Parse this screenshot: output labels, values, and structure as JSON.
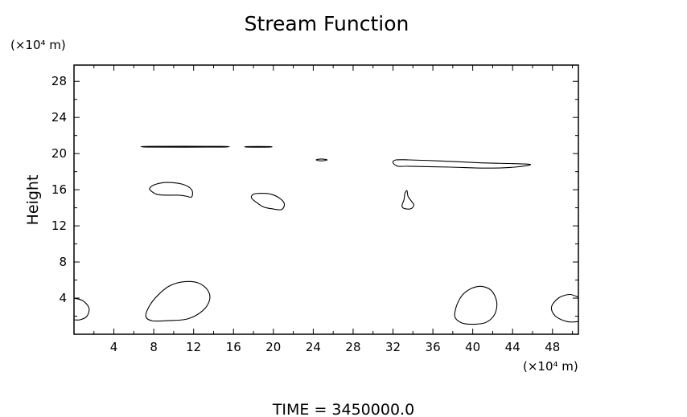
{
  "chart_data": {
    "type": "contour",
    "title": "Stream Function",
    "ylabel": "Height",
    "xunit_label": "(×10⁴ m)",
    "yunit_label": "(×10⁴ m)",
    "footer": "TIME  =  3450000.0",
    "xlim": [
      0,
      50.6
    ],
    "ylim": [
      0,
      29.8
    ],
    "xticks": [
      4,
      8,
      12,
      16,
      20,
      24,
      28,
      32,
      36,
      40,
      44,
      48
    ],
    "yticks": [
      4,
      8,
      12,
      16,
      20,
      24,
      28
    ],
    "grid": false,
    "line_color": "#000000",
    "contours": [
      {
        "name": "lower-left-edge",
        "closed": false,
        "points": [
          [
            0,
            4.0
          ],
          [
            0.9,
            3.7
          ],
          [
            1.5,
            2.9
          ],
          [
            1.3,
            2.0
          ],
          [
            0.6,
            1.6
          ],
          [
            0,
            1.6
          ]
        ]
      },
      {
        "name": "lower-left-cell",
        "closed": true,
        "points": [
          [
            7.2,
            2.0
          ],
          [
            7.6,
            3.2
          ],
          [
            8.4,
            4.3
          ],
          [
            9.5,
            5.3
          ],
          [
            10.9,
            5.8
          ],
          [
            12.4,
            5.7
          ],
          [
            13.4,
            4.9
          ],
          [
            13.6,
            3.8
          ],
          [
            12.9,
            2.6
          ],
          [
            11.4,
            1.7
          ],
          [
            9.3,
            1.5
          ],
          [
            7.8,
            1.5
          ]
        ]
      },
      {
        "name": "lower-right-cell",
        "closed": true,
        "points": [
          [
            38.2,
            2.0
          ],
          [
            38.5,
            3.5
          ],
          [
            39.3,
            4.7
          ],
          [
            40.6,
            5.3
          ],
          [
            41.8,
            4.9
          ],
          [
            42.4,
            3.6
          ],
          [
            42.2,
            2.2
          ],
          [
            41.3,
            1.3
          ],
          [
            39.9,
            1.1
          ],
          [
            38.8,
            1.3
          ]
        ]
      },
      {
        "name": "lower-right-edge",
        "closed": false,
        "points": [
          [
            50.6,
            4.1
          ],
          [
            49.7,
            4.4
          ],
          [
            48.6,
            4.0
          ],
          [
            47.9,
            3.0
          ],
          [
            48.3,
            2.0
          ],
          [
            49.5,
            1.4
          ],
          [
            50.6,
            1.4
          ]
        ]
      },
      {
        "name": "mid-left-cell",
        "closed": true,
        "points": [
          [
            7.6,
            16.2
          ],
          [
            8.2,
            16.6
          ],
          [
            9.3,
            16.8
          ],
          [
            10.9,
            16.6
          ],
          [
            11.8,
            16.0
          ],
          [
            11.8,
            15.2
          ],
          [
            11.2,
            15.3
          ],
          [
            10.5,
            15.4
          ],
          [
            9.2,
            15.4
          ],
          [
            8.3,
            15.5
          ],
          [
            7.7,
            15.9
          ]
        ]
      },
      {
        "name": "mid-center-cell",
        "closed": true,
        "points": [
          [
            17.8,
            15.1
          ],
          [
            18.3,
            14.6
          ],
          [
            19.0,
            14.1
          ],
          [
            19.8,
            13.9
          ],
          [
            20.8,
            13.8
          ],
          [
            21.1,
            14.4
          ],
          [
            20.7,
            15.0
          ],
          [
            19.8,
            15.5
          ],
          [
            18.8,
            15.6
          ],
          [
            18.0,
            15.5
          ]
        ]
      },
      {
        "name": "mid-right-blob",
        "closed": true,
        "points": [
          [
            32.9,
            14.2
          ],
          [
            33.1,
            14.9
          ],
          [
            33.2,
            15.6
          ],
          [
            33.4,
            15.9
          ],
          [
            33.5,
            15.3
          ],
          [
            33.8,
            14.8
          ],
          [
            34.1,
            14.3
          ],
          [
            33.8,
            13.9
          ],
          [
            33.2,
            13.9
          ]
        ]
      },
      {
        "name": "upper-right-band",
        "closed": true,
        "points": [
          [
            32.0,
            19.0
          ],
          [
            32.3,
            19.3
          ],
          [
            33.6,
            19.3
          ],
          [
            36.4,
            19.2
          ],
          [
            40.4,
            19.0
          ],
          [
            43.6,
            18.9
          ],
          [
            45.8,
            18.8
          ],
          [
            44.2,
            18.5
          ],
          [
            41.2,
            18.4
          ],
          [
            37.8,
            18.5
          ],
          [
            33.6,
            18.6
          ],
          [
            32.5,
            18.6
          ]
        ]
      },
      {
        "name": "upper-left-band",
        "closed": true,
        "points": [
          [
            7.6,
            20.8
          ],
          [
            14.7,
            20.8
          ],
          [
            14.7,
            20.72
          ],
          [
            7.6,
            20.72
          ]
        ]
      },
      {
        "name": "upper-center-dash",
        "closed": true,
        "points": [
          [
            17.4,
            20.78
          ],
          [
            19.6,
            20.78
          ],
          [
            19.6,
            20.72
          ],
          [
            17.4,
            20.72
          ]
        ]
      },
      {
        "name": "upper-center-tick",
        "closed": true,
        "points": [
          [
            24.3,
            19.3
          ],
          [
            24.8,
            19.4
          ],
          [
            25.4,
            19.3
          ],
          [
            24.8,
            19.2
          ]
        ]
      }
    ]
  }
}
